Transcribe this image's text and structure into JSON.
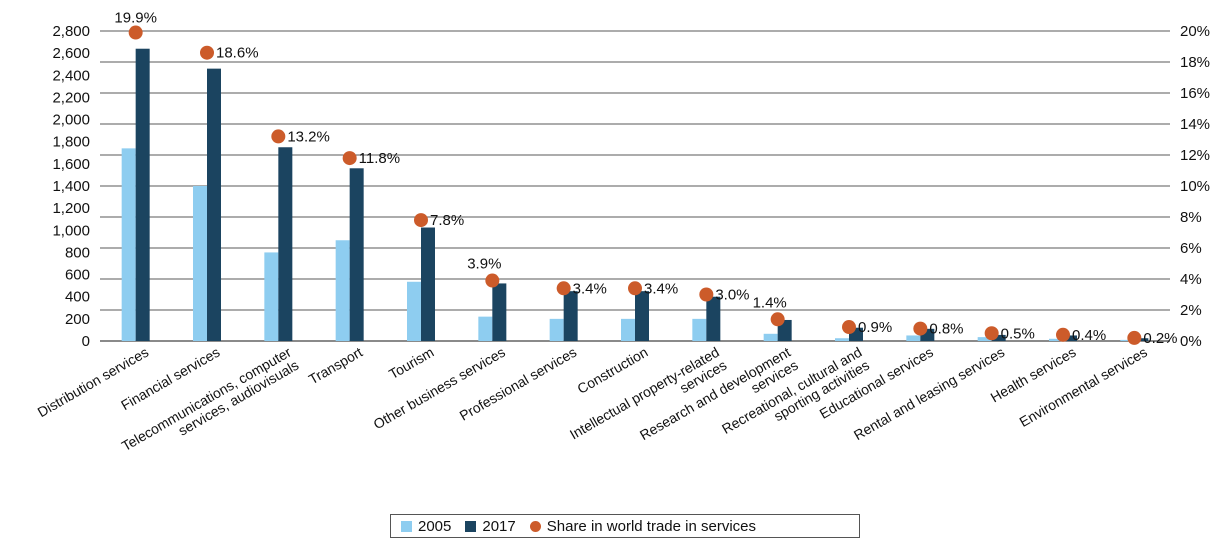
{
  "chart_data": {
    "type": "bar",
    "categories": [
      "Distribution services",
      "Financial services",
      "Telecommunications, computer services, audiovisuals",
      "Transport",
      "Tourism",
      "Other business services",
      "Professional services",
      "Construction",
      "Intellectual property-related services",
      "Research and development services",
      "Recreational, cultural and sporting activities",
      "Educational services",
      "Rental and leasing services",
      "Health services",
      "Environmental services"
    ],
    "category_lines": [
      [
        "Distribution services"
      ],
      [
        "Financial services"
      ],
      [
        "Telecommunications, computer",
        "services, audiovisuals"
      ],
      [
        "Transport"
      ],
      [
        "Tourism"
      ],
      [
        "Other business services"
      ],
      [
        "Professional services"
      ],
      [
        "Construction"
      ],
      [
        "Intellectual property-related",
        "services"
      ],
      [
        "Research and development",
        "services"
      ],
      [
        "Recreational, cultural and",
        "sporting activities"
      ],
      [
        "Educational services"
      ],
      [
        "Rental and leasing services"
      ],
      [
        "Health services"
      ],
      [
        "Environmental services"
      ]
    ],
    "series": [
      {
        "name": "2005",
        "color": "#8ecdf0",
        "values": [
          1740,
          1400,
          800,
          910,
          535,
          220,
          200,
          200,
          200,
          65,
          25,
          50,
          35,
          20,
          10
        ]
      },
      {
        "name": "2017",
        "color": "#1b4460",
        "values": [
          2640,
          2460,
          1750,
          1560,
          1025,
          520,
          450,
          450,
          400,
          190,
          120,
          110,
          55,
          50,
          25
        ]
      }
    ],
    "share": {
      "name": "Share in world trade in services",
      "color": "#cc5b2a",
      "values": [
        19.9,
        18.6,
        13.2,
        11.8,
        7.8,
        3.9,
        3.4,
        3.4,
        3.0,
        1.4,
        0.9,
        0.8,
        0.5,
        0.4,
        0.2
      ],
      "labels": [
        "19.9%",
        "18.6%",
        "13.2%",
        "11.8%",
        "7.8%",
        "3.9%",
        "3.4%",
        "3.4%",
        "3.0%",
        "1.4%",
        "0.9%",
        "0.8%",
        "0.5%",
        "0.4%",
        "0.2%"
      ]
    },
    "y_left": {
      "ylim": [
        0,
        2800
      ],
      "ticks": [
        0,
        200,
        400,
        600,
        800,
        1000,
        1200,
        1400,
        1600,
        1800,
        2000,
        2200,
        2400,
        2600,
        2800
      ],
      "tick_labels": [
        "0",
        "200",
        "400",
        "600",
        "800",
        "1,000",
        "1,200",
        "1,400",
        "1,600",
        "1,800",
        "2,000",
        "2,200",
        "2,400",
        "2,600",
        "2,800"
      ]
    },
    "y_right": {
      "ylim": [
        0,
        20
      ],
      "ticks": [
        0,
        2,
        4,
        6,
        8,
        10,
        12,
        14,
        16,
        18,
        20
      ],
      "tick_labels": [
        "0%",
        "2%",
        "4%",
        "6%",
        "8%",
        "10%",
        "12%",
        "14%",
        "16%",
        "18%",
        "20%"
      ]
    },
    "grid": true,
    "legend_position": "bottom-center"
  },
  "legend": {
    "items": [
      {
        "label": "2005",
        "color": "#8ecdf0"
      },
      {
        "label": "2017",
        "color": "#1b4460"
      },
      {
        "label": "Share in world trade in services",
        "color": "#cc5b2a"
      }
    ]
  }
}
